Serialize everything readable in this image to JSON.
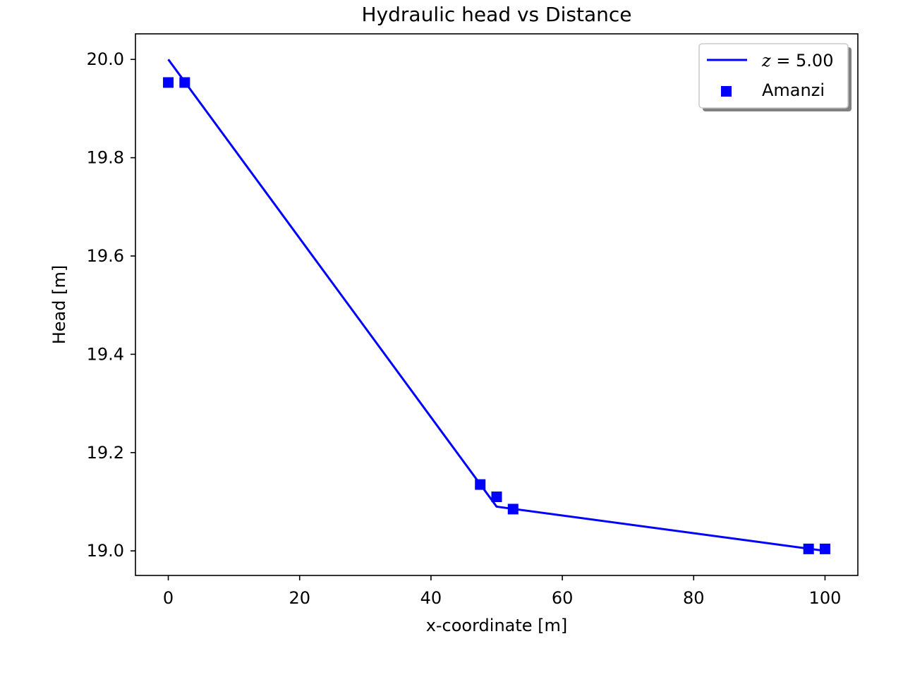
{
  "chart_data": {
    "type": "line",
    "title": "Hydraulic head vs Distance",
    "xlabel": "x-coordinate [m]",
    "ylabel": "Head [m]",
    "xlim": [
      -5,
      105
    ],
    "ylim": [
      18.95,
      20.052
    ],
    "x_ticks": [
      0,
      20,
      40,
      60,
      80,
      100
    ],
    "x_tick_labels": [
      "0",
      "20",
      "40",
      "60",
      "80",
      "100"
    ],
    "y_ticks": [
      19.0,
      19.2,
      19.4,
      19.6,
      19.8,
      20.0
    ],
    "y_tick_labels": [
      "19.0",
      "19.2",
      "19.4",
      "19.6",
      "19.8",
      "20.0"
    ],
    "grid": false,
    "legend_position": "top-right",
    "series": [
      {
        "name": "z = 5.00",
        "kind": "line",
        "color": "#0000ff",
        "x": [
          0,
          50,
          100
        ],
        "y": [
          20.0,
          19.09,
          19.0
        ]
      },
      {
        "name": "Amanzi",
        "kind": "scatter",
        "marker": "square",
        "color": "#0000ff",
        "x": [
          0,
          2.5,
          47.5,
          50,
          52.5,
          97.5,
          100
        ],
        "y": [
          19.953,
          19.953,
          19.135,
          19.11,
          19.085,
          19.004,
          19.004
        ]
      }
    ]
  },
  "legend": {
    "line_label_var": "z",
    "line_label_eq": " = 5.00",
    "scatter_label": "Amanzi"
  }
}
